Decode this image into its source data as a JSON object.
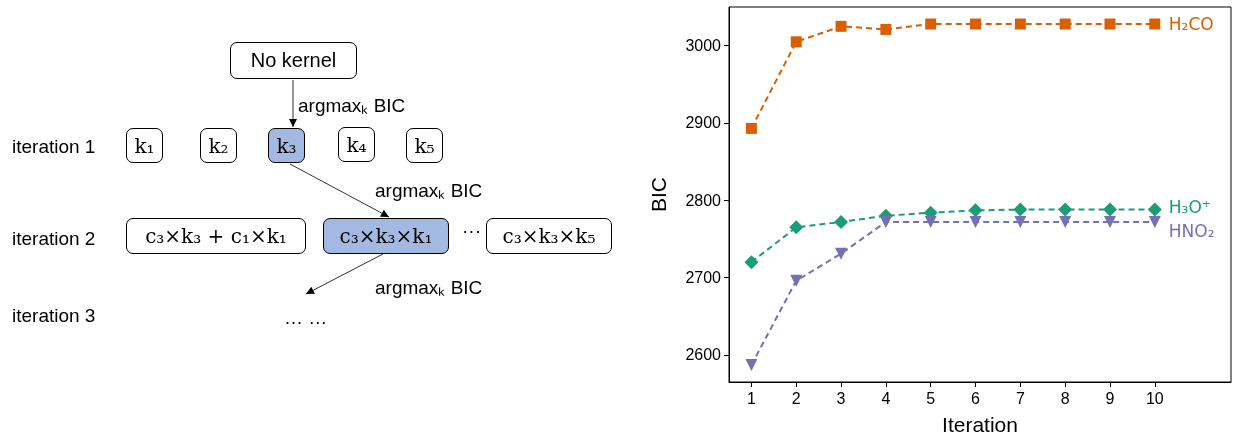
{
  "chart_data": [
    {
      "type": "other",
      "annotations": [
        "No kernel",
        "argmaxₖ BIC",
        "iteration 1",
        "k₁",
        "k₂",
        "k₃",
        "k₄",
        "k₅",
        "argmaxₖ BIC",
        "iteration 2",
        "c₃×k₃ + c₁×k₁",
        "c₃×k₃×k₁",
        "···",
        "c₃×k₃×k₅",
        "argmaxₖ BIC",
        "iteration 3",
        "… …"
      ]
    },
    {
      "type": "line",
      "xlabel": "Iteration",
      "ylabel": "BIC",
      "x": [
        1,
        2,
        3,
        4,
        5,
        6,
        7,
        8,
        9,
        10
      ],
      "xlim": [
        0.5,
        11.7
      ],
      "xticks": [
        1,
        2,
        3,
        4,
        5,
        6,
        7,
        8,
        9,
        10
      ],
      "ylim": [
        2565,
        3050
      ],
      "yticks": [
        2600,
        2700,
        2800,
        2900,
        3000
      ],
      "grid": false,
      "legend": false,
      "line_style": "dashed",
      "series": [
        {
          "name": "H₂CO",
          "color": "#d95f02",
          "marker": "square",
          "values": [
            2893,
            3005,
            3025,
            3021,
            3028,
            3028,
            3028,
            3028,
            3028,
            3028
          ]
        },
        {
          "name": "H₃O⁺",
          "color": "#1b9e77",
          "marker": "diamond",
          "values": [
            2720,
            2765,
            2772,
            2780,
            2784,
            2787,
            2788,
            2788,
            2788,
            2788
          ]
        },
        {
          "name": "HNO₂",
          "color": "#7570b3",
          "marker": "triangle",
          "values": [
            2587,
            2696,
            2731,
            2772,
            2772,
            2772,
            2772,
            2772,
            2772,
            2772
          ]
        }
      ]
    }
  ]
}
